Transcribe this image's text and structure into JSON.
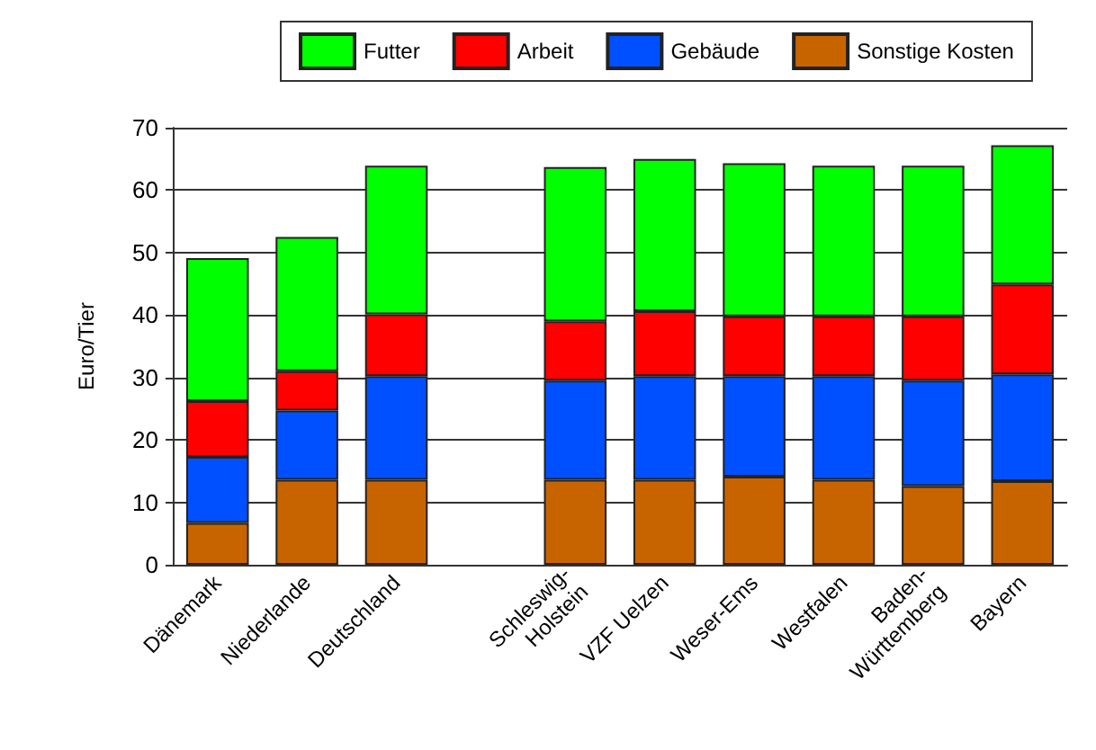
{
  "chart_data": {
    "type": "bar",
    "stacked": true,
    "ylabel": "Euro/Tier",
    "categories": [
      "Dänemark",
      "Niederlande",
      "Deutschland",
      null,
      "Schleswig-Holstein",
      "VZF Uelzen",
      "Weser-Ems",
      "Westfalen",
      "Baden-Württemberg",
      "Bayern"
    ],
    "series": [
      {
        "name": "Sonstige Kosten",
        "color": "#c86400",
        "values": [
          6.7,
          13.6,
          13.6,
          null,
          13.6,
          13.6,
          14.1,
          13.6,
          12.6,
          13.4
        ]
      },
      {
        "name": "Gebäude",
        "color": "#0050ff",
        "values": [
          10.6,
          11.1,
          16.6,
          null,
          15.9,
          16.6,
          16.1,
          16.6,
          16.9,
          17.1
        ]
      },
      {
        "name": "Arbeit",
        "color": "#ff0000",
        "values": [
          8.9,
          6.3,
          9.9,
          null,
          9.5,
          10.4,
          9.6,
          9.6,
          10.3,
          14.4
        ]
      },
      {
        "name": "Futter",
        "color": "#00ff00",
        "values": [
          22.9,
          21.5,
          23.8,
          null,
          24.7,
          24.4,
          24.5,
          24.1,
          24.1,
          22.3
        ]
      }
    ],
    "ylim": [
      0,
      70
    ],
    "yticks": [
      0,
      10,
      20,
      30,
      40,
      50,
      60,
      70
    ],
    "grid": "y",
    "legend": "top"
  }
}
